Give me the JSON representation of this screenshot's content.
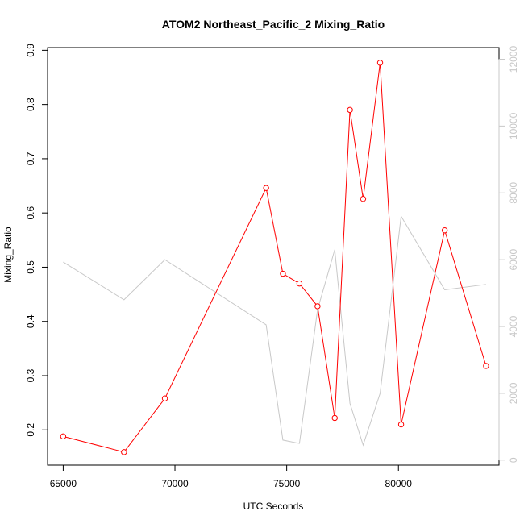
{
  "chart_data": {
    "type": "line",
    "title": "ATOM2 Northeast_Pacific_2 Mixing_Ratio",
    "xlabel": "UTC Seconds",
    "ylabel": "Mixing_Ratio",
    "xlim": [
      64300,
      84500
    ],
    "ylim": [
      0.135,
      0.905
    ],
    "y2lim": [
      -150,
      12350
    ],
    "x_ticks": [
      65000,
      70000,
      75000,
      80000
    ],
    "x_tick_labels": [
      "65000",
      "70000",
      "75000",
      "80000"
    ],
    "y_ticks": [
      0.2,
      0.3,
      0.4,
      0.5,
      0.6,
      0.7,
      0.8,
      0.9
    ],
    "y_tick_labels": [
      "0.2",
      "0.3",
      "0.4",
      "0.5",
      "0.6",
      "0.7",
      "0.8",
      "0.9"
    ],
    "y2_ticks": [
      0,
      2000,
      4000,
      6000,
      8000,
      10000,
      12000
    ],
    "y2_tick_labels": [
      "0",
      "2000",
      "4000",
      "6000",
      "8000",
      "10000",
      "12000"
    ],
    "grid": false,
    "series": [
      {
        "axis": "left",
        "color": "#ff0000",
        "marker": "circle",
        "x": [
          65000,
          67720,
          69550,
          74080,
          74830,
          75570,
          76380,
          77150,
          77830,
          78420,
          79180,
          80120,
          82070,
          83920
        ],
        "y": [
          0.188,
          0.159,
          0.258,
          0.646,
          0.488,
          0.47,
          0.428,
          0.222,
          0.79,
          0.626,
          0.877,
          0.21,
          0.568,
          0.318
        ]
      },
      {
        "axis": "right",
        "color": "#c8c8c8",
        "marker": "none",
        "x": [
          65000,
          67720,
          69550,
          74080,
          74830,
          75570,
          76380,
          77150,
          77830,
          78420,
          79180,
          80120,
          82070,
          83920
        ],
        "y": [
          5930,
          4800,
          6000,
          4050,
          600,
          500,
          4500,
          6300,
          1700,
          450,
          2000,
          7300,
          5100,
          5260
        ]
      }
    ]
  }
}
